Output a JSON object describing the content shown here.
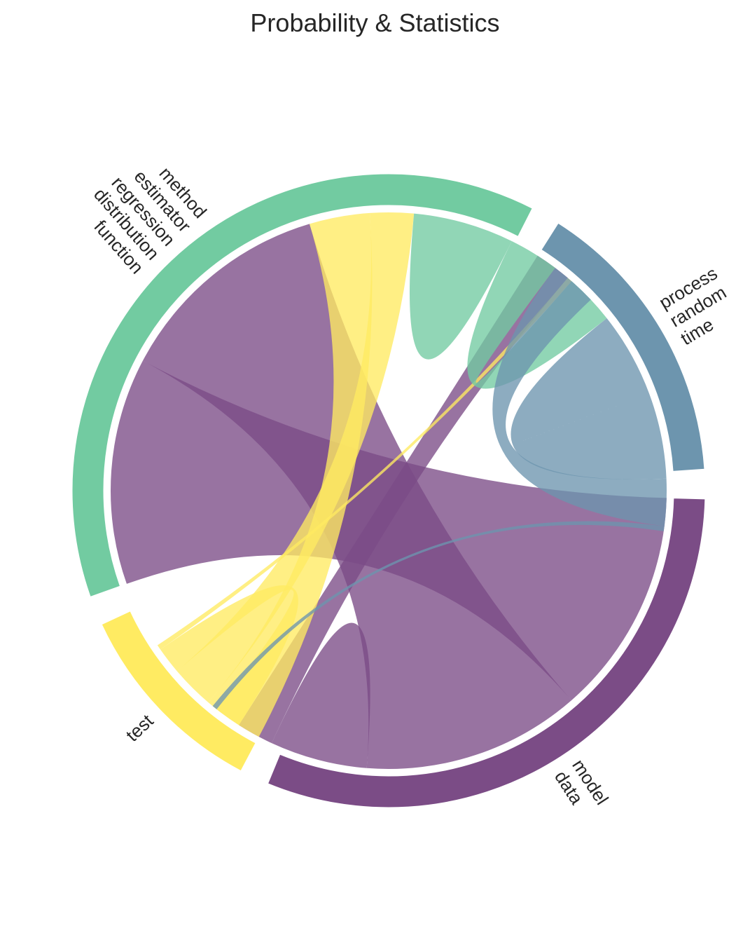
{
  "chart_data": {
    "type": "chord",
    "title": "Probability & Statistics",
    "groups": [
      {
        "labels": [
          "model",
          "data"
        ],
        "value": 31.6,
        "color": "#7b4c86"
      },
      {
        "labels": [
          "test"
        ],
        "value": 10.6,
        "color": "#ffeb62"
      },
      {
        "labels": [
          "method",
          "estimator",
          "regression",
          "distribution",
          "function"
        ],
        "value": 38.9,
        "color": "#72cba1"
      },
      {
        "labels": [
          "process",
          "random",
          "time"
        ],
        "value": 15.3,
        "color": "#6d95ae"
      }
    ],
    "links": [
      {
        "source": 0,
        "target": 2,
        "value": 13.5
      },
      {
        "source": 0,
        "target": 2,
        "value": 13.0
      },
      {
        "source": 0,
        "target": 0,
        "value": 2.9
      },
      {
        "source": 0,
        "target": 3,
        "value": 2.2
      },
      {
        "source": 1,
        "target": 2,
        "value": 3.6
      },
      {
        "source": 1,
        "target": 2,
        "value": 2.6
      },
      {
        "source": 1,
        "target": 0,
        "value": 1.6
      },
      {
        "source": 1,
        "target": 3,
        "value": 0.3
      },
      {
        "source": 2,
        "target": 2,
        "value": 3.0
      },
      {
        "source": 2,
        "target": 3,
        "value": 3.0
      },
      {
        "source": 3,
        "target": 3,
        "value": 5.1
      },
      {
        "source": 3,
        "target": 2,
        "value": 2.8
      },
      {
        "source": 3,
        "target": 0,
        "value": 0.3
      }
    ]
  }
}
